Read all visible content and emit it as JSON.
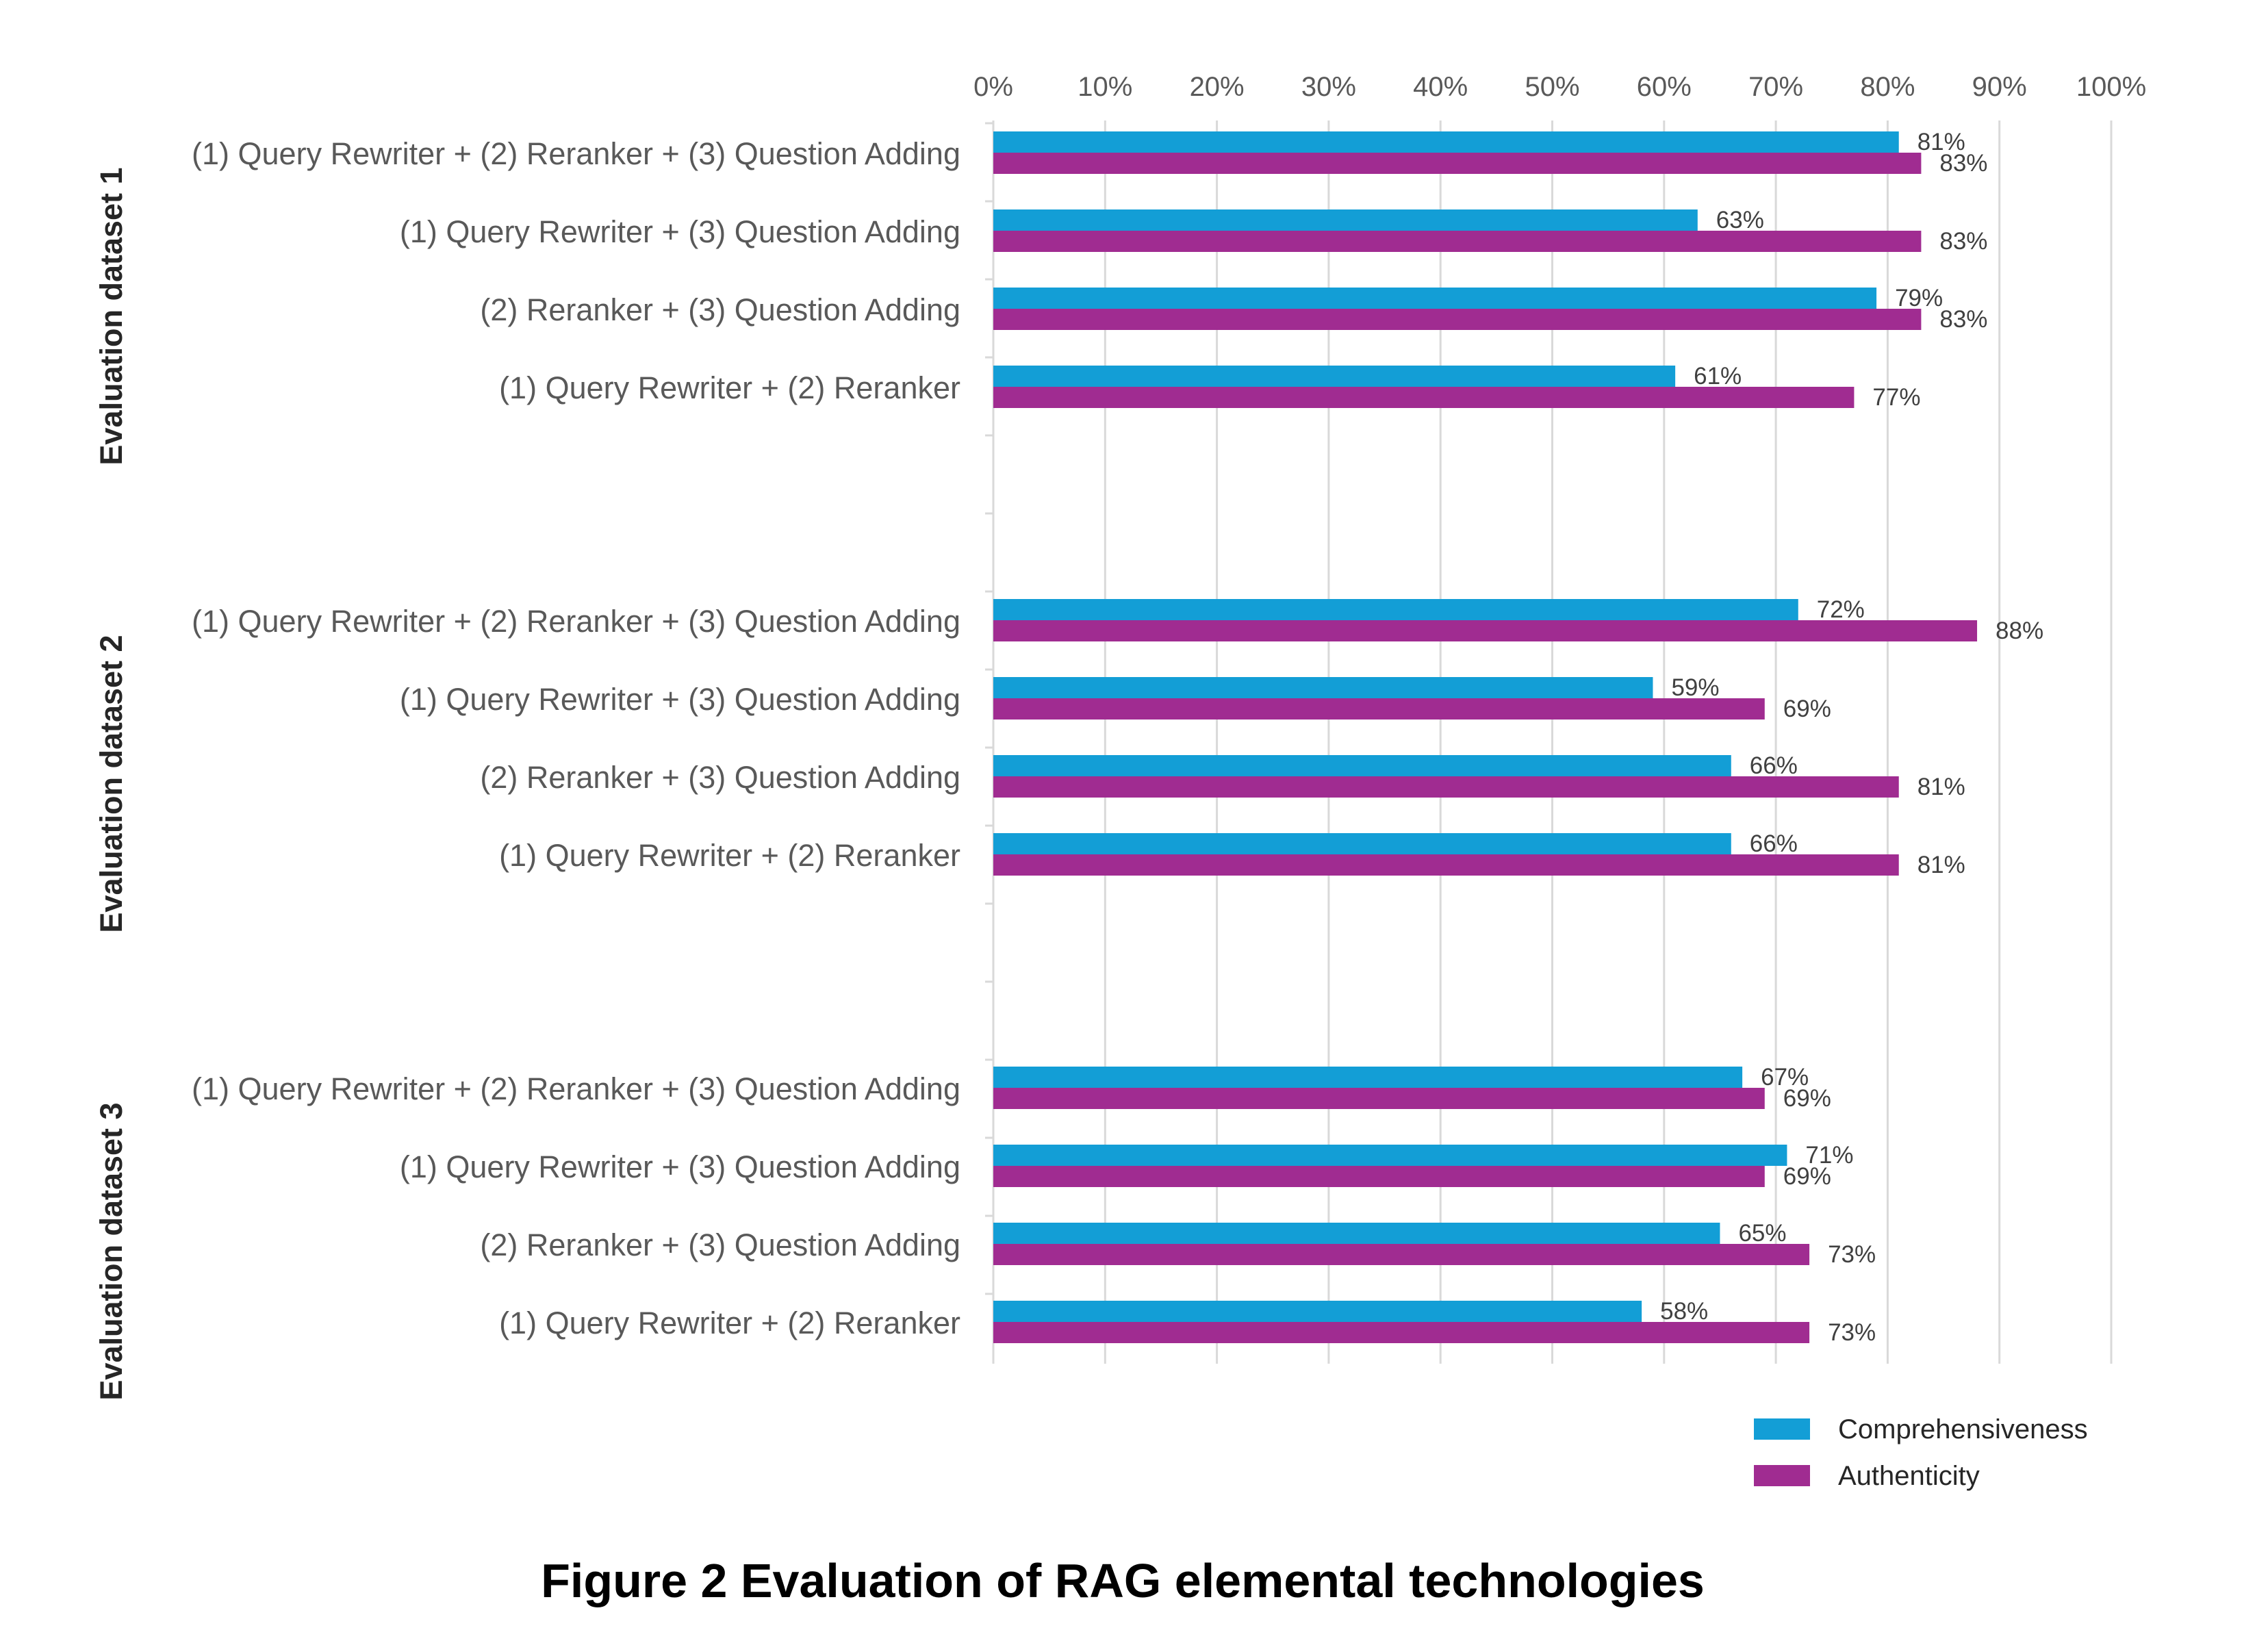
{
  "caption": "Figure 2  Evaluation of RAG elemental technologies",
  "chart_data": {
    "type": "bar",
    "orientation": "horizontal",
    "xlim": [
      0,
      100
    ],
    "x_ticks": [
      "0%",
      "10%",
      "20%",
      "30%",
      "40%",
      "50%",
      "60%",
      "70%",
      "80%",
      "90%",
      "100%"
    ],
    "grid": true,
    "legend_position": "bottom-right",
    "groups": [
      {
        "label": "Evaluation dataset 1",
        "categories": [
          "(1) Query Rewriter + (2) Reranker + (3) Question Adding",
          "(1) Query Rewriter + (3) Question Adding",
          "(2) Reranker + (3) Question Adding",
          "(1) Query Rewriter + (2) Reranker"
        ],
        "series": [
          {
            "name": "Comprehensiveness",
            "values": [
              81,
              63,
              79,
              61
            ]
          },
          {
            "name": "Authenticity",
            "values": [
              83,
              83,
              83,
              77
            ]
          }
        ]
      },
      {
        "label": "Evaluation dataset 2",
        "categories": [
          "(1) Query Rewriter + (2) Reranker + (3) Question Adding",
          "(1) Query Rewriter + (3) Question Adding",
          "(2) Reranker + (3) Question Adding",
          "(1) Query Rewriter + (2) Reranker"
        ],
        "series": [
          {
            "name": "Comprehensiveness",
            "values": [
              72,
              59,
              66,
              66
            ]
          },
          {
            "name": "Authenticity",
            "values": [
              88,
              69,
              81,
              81
            ]
          }
        ]
      },
      {
        "label": "Evaluation dataset 3",
        "categories": [
          "(1) Query Rewriter + (2) Reranker + (3) Question Adding",
          "(1) Query Rewriter + (3) Question Adding",
          "(2) Reranker + (3) Question Adding",
          "(1) Query Rewriter + (2) Reranker"
        ],
        "series": [
          {
            "name": "Comprehensiveness",
            "values": [
              67,
              71,
              65,
              58
            ]
          },
          {
            "name": "Authenticity",
            "values": [
              69,
              69,
              73,
              73
            ]
          }
        ]
      }
    ],
    "legend": [
      {
        "name": "Comprehensiveness",
        "color": "#139ed6"
      },
      {
        "name": "Authenticity",
        "color": "#a02c91"
      }
    ]
  }
}
